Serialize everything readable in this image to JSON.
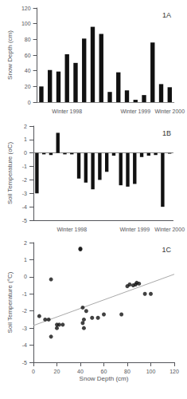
{
  "chart_data": [
    {
      "type": "bar",
      "annotations": [
        "1A"
      ],
      "categories": [
        null,
        null,
        null,
        "Winter 1998",
        null,
        null,
        null,
        null,
        null,
        null,
        null,
        "Winter 1999",
        null,
        null,
        null,
        "Winter 2000"
      ],
      "values": [
        20,
        41,
        39,
        61,
        50,
        81,
        96,
        87,
        13,
        38,
        15,
        3,
        9,
        76,
        23,
        19
      ],
      "color": "#111111",
      "ylabel": "Snow Depth (cm)",
      "ylim": [
        0,
        120
      ],
      "yticks": [
        0,
        20,
        40,
        60,
        80,
        100,
        120
      ],
      "grid": false
    },
    {
      "type": "bar",
      "annotations": [
        "1B"
      ],
      "categories": [
        null,
        null,
        null,
        null,
        null,
        "Winter 1998",
        null,
        null,
        null,
        null,
        null,
        null,
        null,
        null,
        "Winter 1999",
        null,
        null,
        null,
        null,
        "Winter 2000"
      ],
      "values": [
        -3.0,
        -0.1,
        -0.15,
        1.5,
        -0.1,
        -0.1,
        -1.9,
        -2.2,
        -2.7,
        -2.0,
        -1.4,
        -0.2,
        -2.4,
        -2.5,
        -2.3,
        -0.3,
        -0.2,
        -0.15,
        -4.0,
        -0.05
      ],
      "color": "#111111",
      "ylabel": "Soil Temperature (oC)",
      "ylim": [
        -5,
        2
      ],
      "yticks": [
        -5,
        -4,
        -3,
        -2,
        -1,
        0,
        1,
        2
      ],
      "grid": false
    },
    {
      "type": "scatter",
      "annotations": [
        "1C"
      ],
      "xlabel": "Snow Depth (cm)",
      "ylabel": "Soil Temperature (°C)",
      "series": [
        {
          "type": "scatter",
          "color": "#111111",
          "x": [
            5,
            10,
            13,
            15,
            15,
            20,
            20,
            22,
            25,
            40,
            40,
            42,
            42,
            43,
            43,
            45,
            50,
            55,
            60,
            75,
            80,
            82,
            85,
            87,
            88,
            90,
            95,
            100
          ],
          "values": [
            -2.3,
            -2.5,
            -2.5,
            -0.15,
            -3.5,
            -2.8,
            -3.0,
            -2.8,
            -2.8,
            1.65,
            1.6,
            -1.8,
            -2.7,
            -2.5,
            -3.0,
            -2.0,
            -2.4,
            -2.4,
            -2.2,
            -2.2,
            -0.55,
            -0.45,
            -0.5,
            -0.45,
            -0.35,
            -0.4,
            -1.0,
            -1.0
          ]
        },
        {
          "type": "line",
          "color": "#aaaaaa",
          "x": [
            0,
            120
          ],
          "values": [
            -2.85,
            0.15
          ]
        }
      ],
      "xlim": [
        0,
        120
      ],
      "xticks": [
        0,
        20,
        40,
        60,
        80,
        100,
        120
      ],
      "ylim": [
        -5,
        2
      ],
      "yticks": [
        -5,
        -4,
        -3,
        -2,
        -1,
        0,
        1,
        2
      ],
      "grid": false
    }
  ]
}
